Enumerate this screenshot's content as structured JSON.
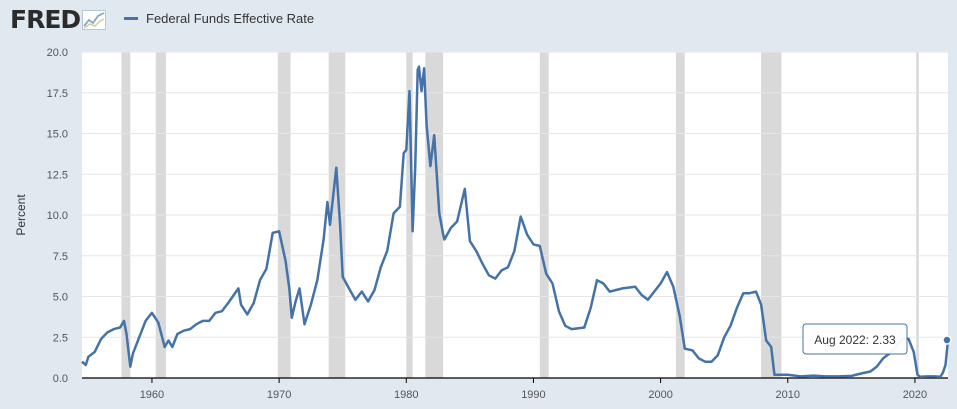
{
  "header": {
    "logo_text": "FRED",
    "series_name": "Federal Funds Effective Rate",
    "series_color": "#4572a7"
  },
  "tooltip": {
    "label": "Aug 2022:",
    "value": "2.33"
  },
  "chart_data": {
    "type": "line",
    "title": "",
    "xlabel": "",
    "ylabel": "Percent",
    "xlim": [
      1954.5,
      2022.6
    ],
    "ylim": [
      0,
      20
    ],
    "y_ticks": [
      "0.0",
      "2.5",
      "5.0",
      "7.5",
      "10.0",
      "12.5",
      "15.0",
      "17.5",
      "20.0"
    ],
    "x_ticks": [
      "1960",
      "1970",
      "1980",
      "1990",
      "2000",
      "2010",
      "2020"
    ],
    "grid": true,
    "legend_position": "top-left",
    "recession_color": "#d9d9d9",
    "recessions": [
      [
        1957.6,
        1958.3
      ],
      [
        1960.3,
        1961.1
      ],
      [
        1969.9,
        1970.9
      ],
      [
        1973.9,
        1975.2
      ],
      [
        1980.0,
        1980.5
      ],
      [
        1981.5,
        1982.9
      ],
      [
        1990.5,
        1991.2
      ],
      [
        2001.2,
        2001.9
      ],
      [
        2007.9,
        2009.5
      ],
      [
        2020.1,
        2020.3
      ]
    ],
    "series": [
      {
        "name": "Federal Funds Effective Rate",
        "color": "#4572a7",
        "x": [
          1954.5,
          1954.8,
          1955.0,
          1955.5,
          1956.0,
          1956.5,
          1957.0,
          1957.5,
          1957.8,
          1958.0,
          1958.3,
          1958.5,
          1959.0,
          1959.5,
          1960.0,
          1960.5,
          1961.0,
          1961.3,
          1961.6,
          1962.0,
          1962.5,
          1963.0,
          1963.5,
          1964.0,
          1964.5,
          1965.0,
          1965.5,
          1966.0,
          1966.8,
          1967.0,
          1967.5,
          1968.0,
          1968.5,
          1969.0,
          1969.5,
          1970.0,
          1970.5,
          1970.8,
          1971.0,
          1971.3,
          1971.6,
          1972.0,
          1972.5,
          1973.0,
          1973.5,
          1973.8,
          1974.0,
          1974.5,
          1974.8,
          1975.0,
          1975.5,
          1976.0,
          1976.5,
          1977.0,
          1977.5,
          1978.0,
          1978.5,
          1979.0,
          1979.5,
          1979.8,
          1980.0,
          1980.25,
          1980.5,
          1980.7,
          1980.9,
          1981.0,
          1981.2,
          1981.4,
          1981.6,
          1981.9,
          1982.2,
          1982.6,
          1982.9,
          1983.0,
          1983.5,
          1984.0,
          1984.6,
          1985.0,
          1985.5,
          1986.0,
          1986.5,
          1987.0,
          1987.5,
          1988.0,
          1988.5,
          1989.0,
          1989.5,
          1990.0,
          1990.5,
          1991.0,
          1991.5,
          1992.0,
          1992.5,
          1993.0,
          1994.0,
          1994.5,
          1995.0,
          1995.5,
          1996.0,
          1997.0,
          1998.0,
          1998.5,
          1999.0,
          1999.5,
          2000.0,
          2000.5,
          2001.0,
          2001.5,
          2001.9,
          2002.5,
          2003.0,
          2003.5,
          2004.0,
          2004.5,
          2005.0,
          2005.5,
          2006.0,
          2006.5,
          2007.0,
          2007.5,
          2007.9,
          2008.3,
          2008.7,
          2008.95,
          2009.2,
          2010.0,
          2011.0,
          2012.0,
          2013.0,
          2014.0,
          2015.0,
          2015.9,
          2016.5,
          2017.0,
          2017.5,
          2018.0,
          2018.5,
          2019.0,
          2019.5,
          2019.9,
          2020.2,
          2020.4,
          2021.0,
          2021.5,
          2022.0,
          2022.2,
          2022.4,
          2022.6
        ],
        "values": [
          1.0,
          0.8,
          1.3,
          1.6,
          2.4,
          2.8,
          3.0,
          3.1,
          3.5,
          2.7,
          0.7,
          1.5,
          2.5,
          3.5,
          4.0,
          3.4,
          1.9,
          2.3,
          1.9,
          2.7,
          2.9,
          3.0,
          3.3,
          3.5,
          3.5,
          4.0,
          4.1,
          4.6,
          5.5,
          4.5,
          3.9,
          4.6,
          6.0,
          6.7,
          8.9,
          9.0,
          7.2,
          5.5,
          3.7,
          4.7,
          5.5,
          3.3,
          4.5,
          6.0,
          8.5,
          10.8,
          9.4,
          12.9,
          9.4,
          6.2,
          5.5,
          4.8,
          5.3,
          4.7,
          5.4,
          6.8,
          7.8,
          10.1,
          10.5,
          13.8,
          14.0,
          17.6,
          9.0,
          12.9,
          18.9,
          19.1,
          17.6,
          19.0,
          15.5,
          13.0,
          14.9,
          10.1,
          8.8,
          8.5,
          9.2,
          9.6,
          11.6,
          8.4,
          7.8,
          7.0,
          6.3,
          6.1,
          6.6,
          6.8,
          7.8,
          9.9,
          8.8,
          8.2,
          8.1,
          6.4,
          5.8,
          4.1,
          3.2,
          3.0,
          3.1,
          4.3,
          6.0,
          5.8,
          5.3,
          5.5,
          5.6,
          5.1,
          4.8,
          5.3,
          5.8,
          6.5,
          5.6,
          3.8,
          1.8,
          1.7,
          1.2,
          1.0,
          1.0,
          1.4,
          2.5,
          3.2,
          4.3,
          5.2,
          5.2,
          5.3,
          4.5,
          2.3,
          1.9,
          0.2,
          0.2,
          0.2,
          0.1,
          0.15,
          0.1,
          0.1,
          0.13,
          0.3,
          0.4,
          0.7,
          1.2,
          1.5,
          1.9,
          2.4,
          2.4,
          1.6,
          0.2,
          0.08,
          0.1,
          0.1,
          0.08,
          0.33,
          0.8,
          2.33
        ]
      }
    ]
  }
}
